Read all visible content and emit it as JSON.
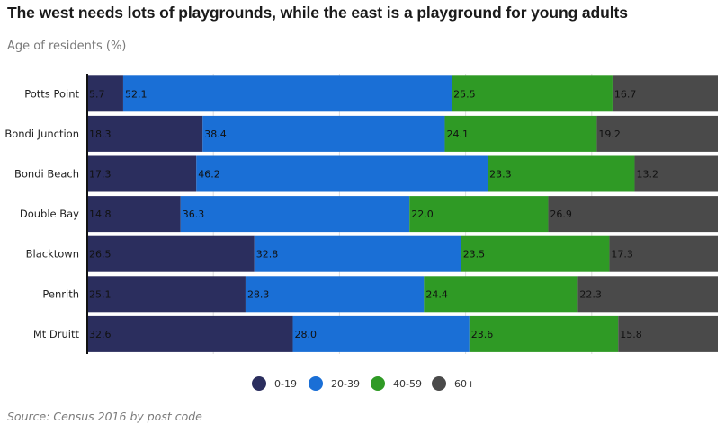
{
  "title": "The west needs lots of playgrounds, while the east is a playground for young adults",
  "subtitle": "Age of residents (%)",
  "source": "Source: Census 2016 by post code",
  "chart_data": {
    "type": "bar",
    "orientation": "horizontal",
    "stacked": true,
    "categories": [
      "Potts Point",
      "Bondi Junction",
      "Bondi Beach",
      "Double Bay",
      "Blacktown",
      "Penrith",
      "Mt Druitt"
    ],
    "series": [
      {
        "name": "0-19",
        "color": "#2b2e5e",
        "values": [
          5.7,
          18.3,
          17.3,
          14.8,
          26.5,
          25.1,
          32.6
        ]
      },
      {
        "name": "20-39",
        "color": "#1a6fd6",
        "values": [
          52.1,
          38.4,
          46.2,
          36.3,
          32.8,
          28.3,
          28.0
        ]
      },
      {
        "name": "40-59",
        "color": "#2f9a25",
        "values": [
          25.5,
          24.1,
          23.3,
          22.0,
          23.5,
          24.4,
          23.6
        ]
      },
      {
        "name": "60+",
        "color": "#4a4a4a",
        "values": [
          16.7,
          19.2,
          13.2,
          26.9,
          17.3,
          22.3,
          15.8
        ]
      }
    ],
    "xlim": [
      0,
      100
    ],
    "grid": true,
    "legend": "bottom",
    "labels": [
      [
        "5.7",
        "52.1",
        "25.5",
        "16.7"
      ],
      [
        "18.3",
        "38.4",
        "24.1",
        "19.2"
      ],
      [
        "17.3",
        "46.2",
        "23.3",
        "13.2"
      ],
      [
        "14.8",
        "36.3",
        "22.0",
        "26.9"
      ],
      [
        "26.5",
        "32.8",
        "23.5",
        "17.3"
      ],
      [
        "25.1",
        "28.3",
        "24.4",
        "22.3"
      ],
      [
        "32.6",
        "28.0",
        "23.6",
        "15.8"
      ]
    ]
  }
}
